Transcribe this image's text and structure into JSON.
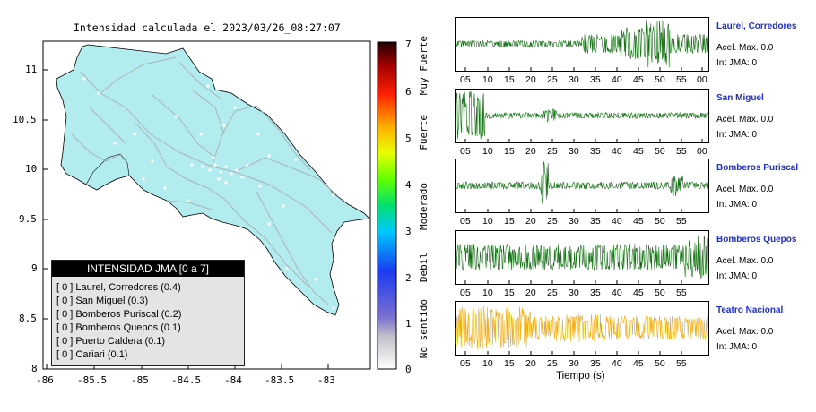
{
  "map": {
    "title": "Intensidad calculada el 2023/03/26_08:27:07",
    "x_ticks": [
      "-86",
      "-85.5",
      "-85",
      "-84.5",
      "-84",
      "-83.5",
      "-83"
    ],
    "y_ticks": [
      "11",
      "10.5",
      "10",
      "9.5",
      "9",
      "8.5",
      "8"
    ],
    "land_color": "#b3ecee"
  },
  "legend": {
    "title": "INTENSIDAD JMA [0 a 7]",
    "rows": [
      {
        "level": "[ 0 ]",
        "station": "Laurel, Corredores (0.4)"
      },
      {
        "level": "[ 0 ]",
        "station": "San Miguel (0.3)"
      },
      {
        "level": "[ 0 ]",
        "station": "Bomberos Puriscal (0.2)"
      },
      {
        "level": "[ 0 ]",
        "station": "Bomberos Quepos (0.1)"
      },
      {
        "level": "[ 0 ]",
        "station": "Puerto Caldera (0.1)"
      },
      {
        "level": "[ 0 ]",
        "station": "Cariari (0.1)"
      }
    ]
  },
  "scale": {
    "numbers": [
      "7",
      "6",
      "5",
      "4",
      "3",
      "2",
      "1",
      "0"
    ],
    "labels": [
      "Muy Fuerte",
      "Fuerte",
      "Moderado",
      "Debil",
      "No sentido"
    ]
  },
  "stations": [
    {
      "name": "Laurel, Corredores",
      "accel": "Acel. Max. 0.0",
      "jma": "Int JMA: 0",
      "color": "#0b6e0b",
      "ticks": [
        "05",
        "10",
        "15",
        "20",
        "25",
        "30",
        "35",
        "40",
        "45",
        "50",
        "55",
        "00"
      ]
    },
    {
      "name": "San Miguel",
      "accel": "Acel. Max. 0.0",
      "jma": "Int JMA: 0",
      "color": "#0b6e0b",
      "ticks": [
        "05",
        "10",
        "15",
        "20",
        "25",
        "30",
        "35",
        "40",
        "45",
        "50",
        "55",
        "00"
      ]
    },
    {
      "name": "Bomberos Puriscal",
      "accel": "Acel. Max. 0.0",
      "jma": "Int JMA: 0",
      "color": "#0b6e0b",
      "ticks": [
        "05",
        "10",
        "15",
        "20",
        "25",
        "30",
        "35",
        "40",
        "45",
        "50",
        "55"
      ]
    },
    {
      "name": "Bomberos Quepos",
      "accel": "Acel. Max. 0.0",
      "jma": "Int JMA: 0",
      "color": "#0b6e0b",
      "ticks": [
        "05",
        "10",
        "15",
        "20",
        "25",
        "30",
        "35",
        "40",
        "45",
        "50",
        "55"
      ]
    },
    {
      "name": "Teatro Nacional",
      "accel": "Acel. Max. 0.0",
      "jma": "Int JMA: 0",
      "color": "#f5a800",
      "ticks": [
        "05",
        "10",
        "15",
        "20",
        "25",
        "30",
        "35",
        "40",
        "45",
        "50",
        "55"
      ]
    }
  ],
  "waves": {
    "xlabel": "Tiempo (s)"
  }
}
